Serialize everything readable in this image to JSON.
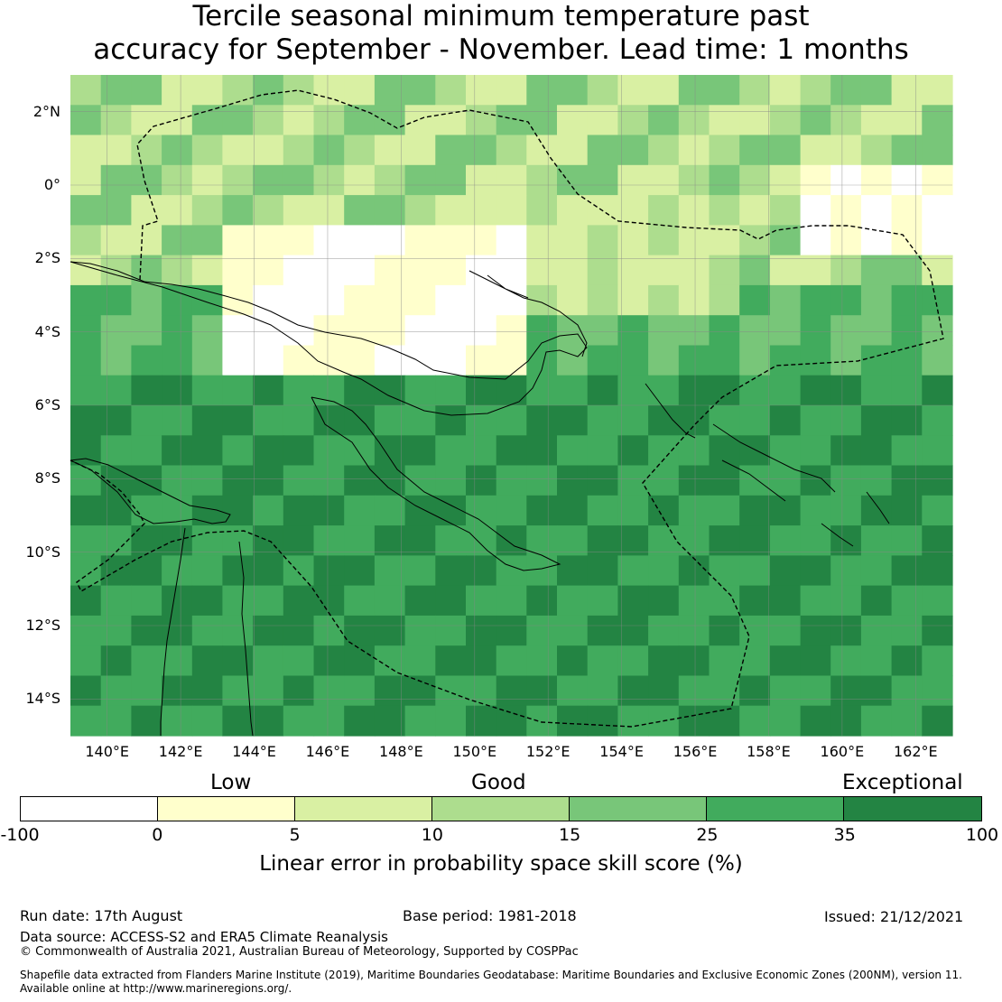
{
  "title": {
    "line1": "Tercile seasonal minimum temperature past",
    "line2": "accuracy for September - November. Lead time: 1 months"
  },
  "map": {
    "lat_labels": [
      "2°N",
      "0°",
      "2°S",
      "4°S",
      "6°S",
      "8°S",
      "10°S",
      "12°S",
      "14°S"
    ],
    "lon_labels": [
      "140°E",
      "142°E",
      "144°E",
      "146°E",
      "148°E",
      "150°E",
      "152°E",
      "154°E",
      "156°E",
      "158°E",
      "160°E",
      "162°E"
    ],
    "lon_range": [
      139,
      163
    ],
    "lat_range": [
      -15,
      3
    ],
    "grid": true,
    "skill_scale_colors": [
      "#ffffff",
      "#ffffcc",
      "#d9f0a3",
      "#addd8e",
      "#78c679",
      "#41ab5d",
      "#238443"
    ]
  },
  "legend": {
    "categories": {
      "low": "Low",
      "good": "Good",
      "exceptional": "Exceptional"
    },
    "ticks": [
      "-100",
      "0",
      "5",
      "10",
      "15",
      "25",
      "35",
      "100"
    ],
    "colors": [
      "#ffffff",
      "#ffffcc",
      "#d9f0a3",
      "#addd8e",
      "#78c679",
      "#41ab5d",
      "#238443"
    ],
    "label": "Linear error in probability space skill score (%)"
  },
  "footer": {
    "run_date": "Run date: 17th August",
    "base_period": "Base period: 1981-2018",
    "issued": "Issued: 21/12/2021",
    "data_source": "Data source: ACCESS-S2 and ERA5 Climate Reanalysis",
    "copyright": "© Commonwealth of Australia 2021, Australian Bureau of Meteorology, Supported by COSPPac",
    "shapefile_line1": "Shapefile data extracted from Flanders Marine Institute (2019), Maritime Boundaries Geodatabase: Maritime Boundaries and Exclusive Economic Zones (200NM), version 11.",
    "shapefile_line2": "Available online at http://www.marineregions.org/."
  }
}
